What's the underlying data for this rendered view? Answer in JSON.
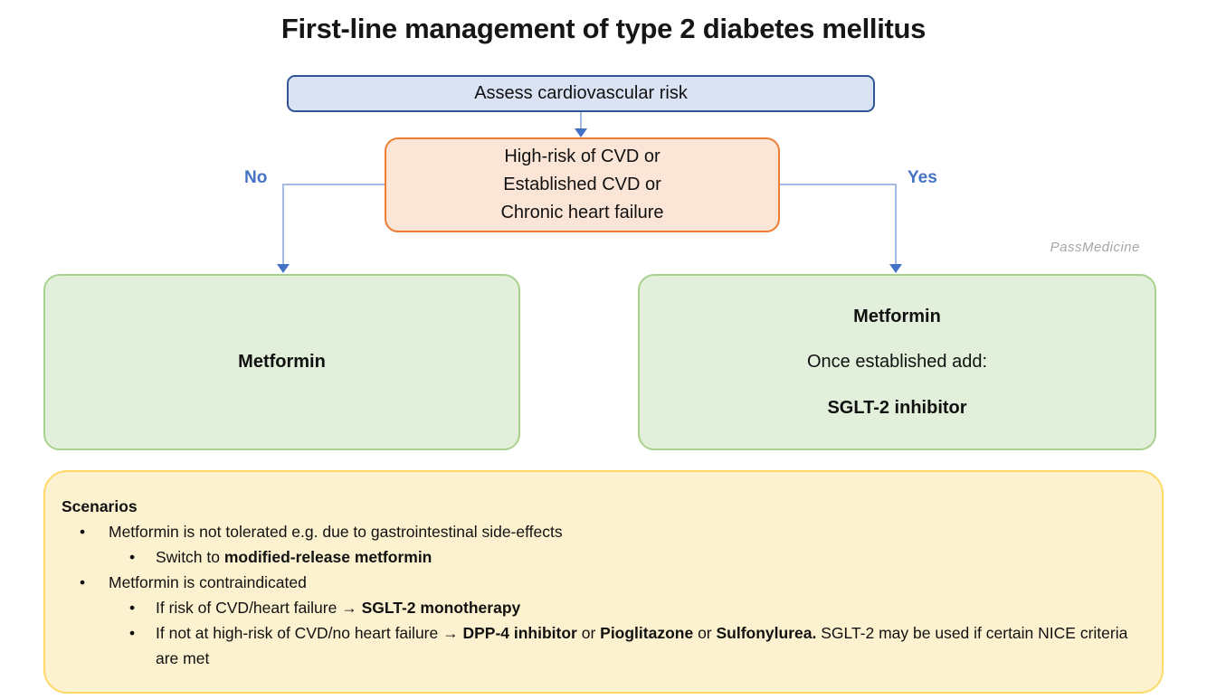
{
  "title": "First-line management of type 2 diabetes mellitus",
  "watermark": "PassMedicine",
  "flow": {
    "assess_label": "Assess cardiovascular risk",
    "risk_lines": [
      "High-risk of CVD or",
      "Established CVD or",
      "Chronic heart failure"
    ],
    "no_label": "No",
    "yes_label": "Yes",
    "no_outcome": "Metformin",
    "yes_outcome": [
      "Metformin",
      "Once established add:",
      "SGLT-2 inhibitor"
    ]
  },
  "scenarios": {
    "heading": "Scenarios",
    "items": [
      {
        "level": 1,
        "segments": [
          {
            "t": "Metformin is not tolerated e.g. due to gastrointestinal side-effects",
            "b": false
          }
        ]
      },
      {
        "level": 2,
        "segments": [
          {
            "t": "Switch to ",
            "b": false
          },
          {
            "t": "modified-release metformin",
            "b": true
          }
        ]
      },
      {
        "level": 1,
        "segments": [
          {
            "t": "Metformin is contraindicated",
            "b": false
          }
        ]
      },
      {
        "level": 2,
        "segments": [
          {
            "t": "If risk of CVD/heart failure ",
            "b": false
          },
          {
            "t": "→ SGLT-2 monotherapy",
            "b": true
          }
        ]
      },
      {
        "level": 2,
        "segments": [
          {
            "t": "If not at high-risk of CVD/no heart failure ",
            "b": false
          },
          {
            "t": "→ DPP-4 inhibitor",
            "b": true
          },
          {
            "t": " or ",
            "b": false
          },
          {
            "t": "Pioglitazone",
            "b": true
          },
          {
            "t": " or ",
            "b": false
          },
          {
            "t": "Sulfonylurea.",
            "b": true
          },
          {
            "t": " SGLT-2 may be used if certain NICE criteria are met",
            "b": false
          }
        ]
      }
    ]
  },
  "colors": {
    "blue_fill": "#dae3f3",
    "blue_border": "#2f5597",
    "orange_fill": "#fbe5d6",
    "orange_border": "#ed7d31",
    "green_fill": "#e2efda",
    "green_border": "#a9d18e",
    "yellow_fill": "#fdf2cf",
    "yellow_border": "#ffd966",
    "connector": "#a3b9e2",
    "accent": "#4472c4",
    "watermark": "#a6a6a6"
  }
}
